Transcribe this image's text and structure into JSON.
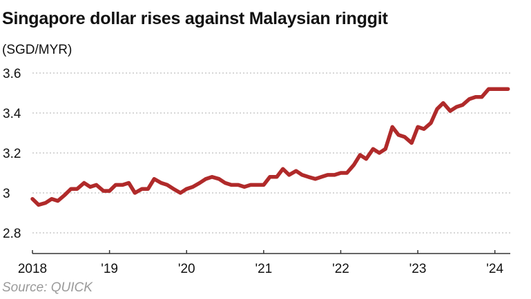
{
  "title": "Singapore dollar rises against Malaysian ringgit",
  "unit_label": "(SGD/MYR)",
  "source": "Source: QUICK",
  "colors": {
    "line": "#b02a2a",
    "grid": "#bdbdbd",
    "axis": "#333333"
  },
  "chart_data": {
    "type": "line",
    "title": "Singapore dollar rises against Malaysian ringgit",
    "ylabel": "(SGD/MYR)",
    "xlabel": "",
    "ylim": [
      2.7,
      3.62
    ],
    "xlim": [
      2018.0,
      2024.2
    ],
    "grid": true,
    "y_ticks": [
      {
        "value": 3.6,
        "label": "3.6"
      },
      {
        "value": 3.4,
        "label": "3.4"
      },
      {
        "value": 3.2,
        "label": "3.2"
      },
      {
        "value": 3.0,
        "label": "3"
      },
      {
        "value": 2.8,
        "label": "2.8"
      }
    ],
    "x_ticks": [
      {
        "value": 2018,
        "label": "2018"
      },
      {
        "value": 2019,
        "label": "'19"
      },
      {
        "value": 2020,
        "label": "'20"
      },
      {
        "value": 2021,
        "label": "'21"
      },
      {
        "value": 2022,
        "label": "'22"
      },
      {
        "value": 2023,
        "label": "'23"
      },
      {
        "value": 2024,
        "label": "'24"
      }
    ],
    "series": [
      {
        "x": [
          2018.0,
          2018.08,
          2018.17,
          2018.25,
          2018.33,
          2018.42,
          2018.5,
          2018.58,
          2018.67,
          2018.75,
          2018.83,
          2018.92,
          2019.0,
          2019.08,
          2019.17,
          2019.25,
          2019.33,
          2019.42,
          2019.5,
          2019.58,
          2019.67,
          2019.75,
          2019.83,
          2019.92,
          2020.0,
          2020.08,
          2020.17,
          2020.25,
          2020.33,
          2020.42,
          2020.5,
          2020.58,
          2020.67,
          2020.75,
          2020.83,
          2020.92,
          2021.0,
          2021.08,
          2021.17,
          2021.25,
          2021.33,
          2021.42,
          2021.5,
          2021.58,
          2021.67,
          2021.75,
          2021.83,
          2021.92,
          2022.0,
          2022.08,
          2022.17,
          2022.25,
          2022.33,
          2022.42,
          2022.5,
          2022.58,
          2022.67,
          2022.75,
          2022.83,
          2022.92,
          2023.0,
          2023.08,
          2023.17,
          2023.25,
          2023.33,
          2023.42,
          2023.5,
          2023.58,
          2023.67,
          2023.75,
          2023.83,
          2023.92,
          2024.0,
          2024.08,
          2024.17
        ],
        "values": [
          2.97,
          2.94,
          2.95,
          2.97,
          2.96,
          2.99,
          3.02,
          3.02,
          3.05,
          3.03,
          3.04,
          3.01,
          3.01,
          3.04,
          3.04,
          3.05,
          3.0,
          3.02,
          3.02,
          3.07,
          3.05,
          3.04,
          3.02,
          3.0,
          3.02,
          3.03,
          3.05,
          3.07,
          3.08,
          3.07,
          3.05,
          3.04,
          3.04,
          3.03,
          3.04,
          3.04,
          3.04,
          3.08,
          3.08,
          3.12,
          3.09,
          3.11,
          3.09,
          3.08,
          3.07,
          3.08,
          3.09,
          3.09,
          3.1,
          3.1,
          3.14,
          3.19,
          3.17,
          3.22,
          3.2,
          3.22,
          3.33,
          3.29,
          3.28,
          3.25,
          3.33,
          3.32,
          3.35,
          3.42,
          3.45,
          3.41,
          3.43,
          3.44,
          3.47,
          3.48,
          3.48,
          3.52,
          3.52,
          3.52,
          3.52
        ]
      }
    ]
  }
}
